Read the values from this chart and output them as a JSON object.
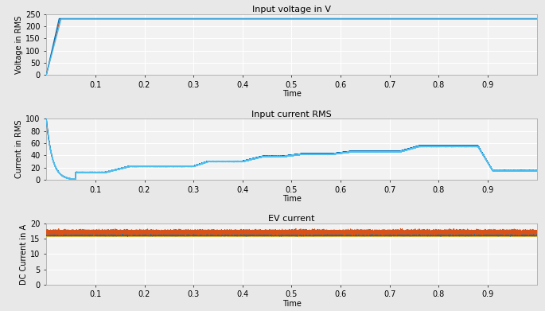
{
  "title1": "Input voltage in V",
  "title2": "Input current RMS",
  "title3": "EV current",
  "ylabel1": "Voltage in RMS",
  "ylabel2": "Current in RMS",
  "ylabel3": "DC Current in A",
  "xlabel": "Time",
  "xlim": [
    0,
    1.0
  ],
  "ylim1": [
    0,
    250
  ],
  "ylim2": [
    0,
    100
  ],
  "ylim3": [
    0,
    20
  ],
  "yticks1": [
    0,
    50,
    100,
    150,
    200,
    250
  ],
  "yticks2": [
    0,
    20,
    40,
    60,
    80,
    100
  ],
  "yticks3": [
    0,
    5,
    10,
    15,
    20
  ],
  "xticks": [
    0.1,
    0.2,
    0.3,
    0.4,
    0.5,
    0.6,
    0.7,
    0.8,
    0.9
  ],
  "color_blue": "#0072BD",
  "color_cyan": "#4DBEEE",
  "color_orange": "#D95319",
  "color_yellow": "#EDB120",
  "bg_color": "#f2f2f2",
  "grid_color": "#ffffff",
  "title_fontsize": 8,
  "label_fontsize": 7,
  "tick_fontsize": 7,
  "voltage_level": 230,
  "current_spike": 100,
  "ev_orange": 17.2,
  "ev_blue": 16.3,
  "ev_yellow": 16.0
}
